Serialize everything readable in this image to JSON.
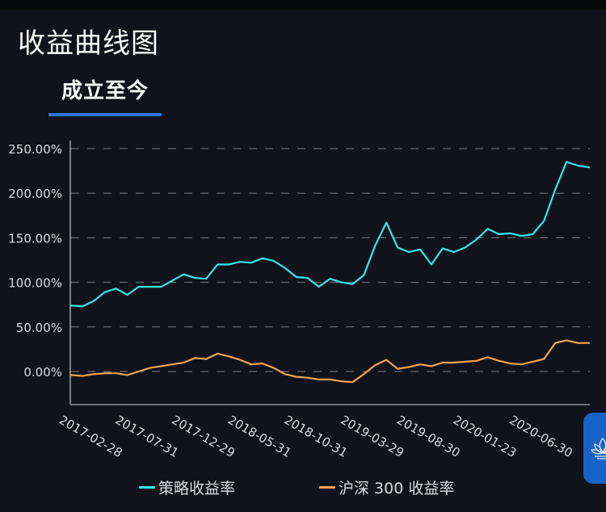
{
  "header": {
    "title": "收益曲线图"
  },
  "tabs": [
    {
      "label": "成立至今",
      "active": true
    }
  ],
  "colors": {
    "background": "#10131b",
    "strategy": "#36e6e8",
    "benchmark": "#f2a553",
    "accent": "#2a73d8",
    "grid": "#7a7e86",
    "axis_text": "#d9dbe0"
  },
  "legend": {
    "strategy_label": "策略收益率",
    "benchmark_label": "沪深 300 收益率"
  },
  "fab": {
    "icon": "lotus-icon"
  },
  "chart_data": {
    "type": "line",
    "title": "收益曲线图",
    "xlabel": "",
    "ylabel": "",
    "ylim": [
      -30,
      260
    ],
    "y_ticks": [
      "0.00%",
      "50.00%",
      "100.00%",
      "150.00%",
      "200.00%",
      "250.00%"
    ],
    "y_tick_values": [
      0,
      50,
      100,
      150,
      200,
      250
    ],
    "x_tick_labels": [
      "2017-02-28",
      "2017-07-31",
      "2017-12-29",
      "2018-05-31",
      "2018-10-31",
      "2019-03-29",
      "2019-08-30",
      "2020-01-23",
      "2020-06-30"
    ],
    "x_tick_indices": [
      0,
      5,
      10,
      15,
      20,
      25,
      30,
      35,
      40
    ],
    "grid": true,
    "grid_style": "dashed-horizontal",
    "legend_position": "bottom",
    "point_count": 47,
    "series": [
      {
        "name": "策略收益率",
        "color": "#36e6e8",
        "values": [
          74,
          73,
          79,
          89,
          93,
          86,
          95,
          95,
          95,
          102,
          109,
          105,
          104,
          120,
          120,
          123,
          122,
          127,
          124,
          116,
          106,
          105,
          95,
          104,
          100,
          98,
          108,
          141,
          167,
          139,
          134,
          137,
          120,
          138,
          134,
          139,
          148,
          160,
          154,
          155,
          152,
          154,
          169,
          204,
          235,
          231,
          229
        ]
      },
      {
        "name": "沪深 300 收益率",
        "color": "#f2a553",
        "values": [
          -4,
          -5,
          -3,
          -2,
          -2,
          -4,
          0,
          4,
          6,
          8,
          10,
          15,
          14,
          20,
          17,
          13,
          8,
          9,
          4,
          -3,
          -6,
          -7,
          -9,
          -9,
          -11,
          -12,
          -3,
          7,
          13,
          3,
          5,
          8,
          6,
          10,
          10,
          11,
          12,
          16,
          12,
          9,
          8,
          11,
          14,
          32,
          35,
          32,
          32
        ]
      }
    ]
  }
}
